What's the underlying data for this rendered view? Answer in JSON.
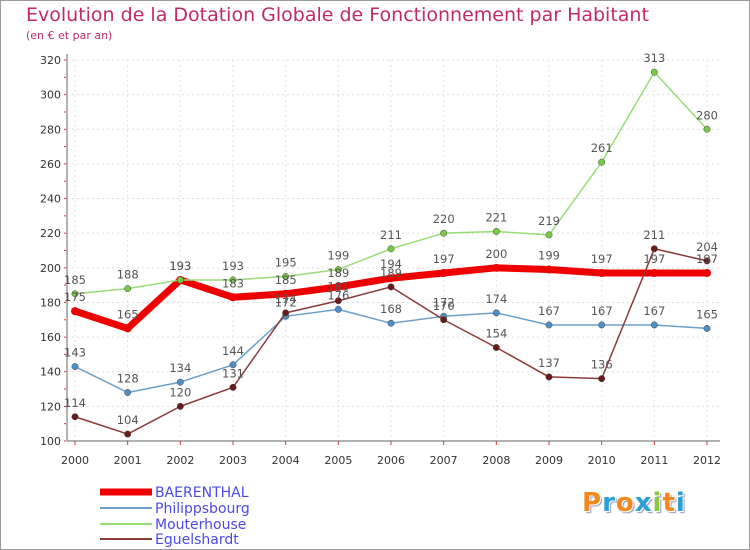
{
  "title": "Evolution de la Dotation Globale de Fonctionnement par Habitant",
  "subtitle": "(en € et par an)",
  "logo": {
    "letters": [
      "P",
      "r",
      "o",
      "x",
      "i",
      "t",
      "i"
    ],
    "colors": [
      "#f08a1e",
      "#2a9fd8",
      "#f08a1e",
      "#2a9fd8",
      "#8cc63f",
      "#f08a1e",
      "#2a9fd8"
    ]
  },
  "chart_data": {
    "type": "line",
    "title": "Evolution de la Dotation Globale de Fonctionnement par Habitant",
    "xlabel": "",
    "ylabel": "(en € et par an)",
    "categories": [
      "2000",
      "2001",
      "2002",
      "2003",
      "2004",
      "2005",
      "2006",
      "2007",
      "2008",
      "2009",
      "2010",
      "2011",
      "2012"
    ],
    "ylim": [
      100,
      320
    ],
    "yticks": [
      100,
      120,
      140,
      160,
      180,
      200,
      220,
      240,
      260,
      280,
      300,
      320
    ],
    "series": [
      {
        "name": "BAERENTHAL",
        "color": "#ee0000",
        "markerColor": "#ee0000",
        "width": 7,
        "labelColor": "#555555",
        "values": [
          175,
          165,
          193,
          183,
          185,
          189,
          194,
          197,
          200,
          199,
          197,
          197,
          197
        ]
      },
      {
        "name": "Philippsbourg",
        "color": "#6aa0cc",
        "markerColor": "#4f8fc5",
        "width": 1.5,
        "labelColor": "#555555",
        "values": [
          143,
          128,
          134,
          144,
          172,
          176,
          168,
          172,
          174,
          167,
          167,
          167,
          165
        ]
      },
      {
        "name": "Mouterhouse",
        "color": "#99dd77",
        "markerColor": "#77cc44",
        "width": 1.5,
        "labelColor": "#555555",
        "values": [
          185,
          188,
          193,
          193,
          195,
          199,
          211,
          220,
          221,
          219,
          261,
          313,
          280
        ]
      },
      {
        "name": "Eguelshardt",
        "color": "#8a3a3a",
        "markerColor": "#6b1a1a",
        "width": 1.5,
        "labelColor": "#555555",
        "values": [
          114,
          104,
          120,
          131,
          174,
          181,
          189,
          170,
          154,
          137,
          136,
          211,
          204
        ]
      }
    ]
  }
}
